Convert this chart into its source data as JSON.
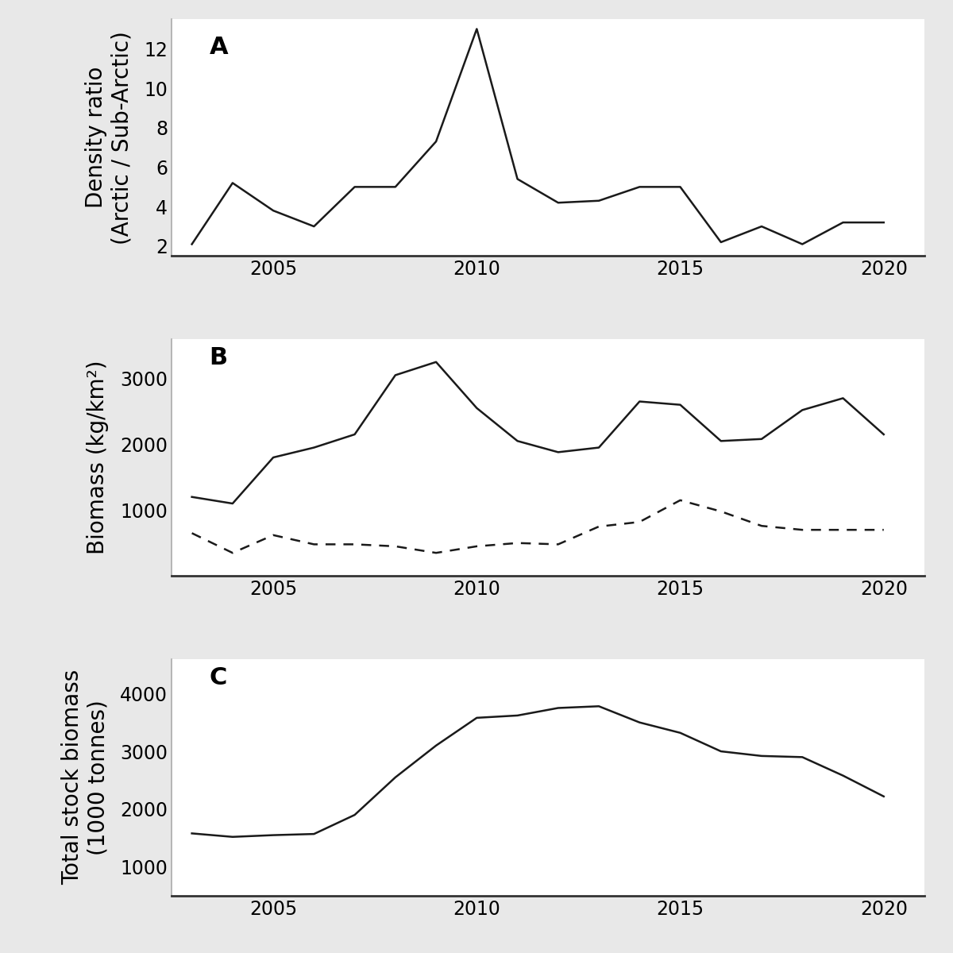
{
  "panel_A": {
    "label": "A",
    "ylabel": "Density ratio\n(Arctic / Sub-Arctic)",
    "years": [
      2003,
      2004,
      2005,
      2006,
      2007,
      2008,
      2009,
      2010,
      2011,
      2012,
      2013,
      2014,
      2015,
      2016,
      2017,
      2018,
      2019,
      2020
    ],
    "values": [
      2.1,
      5.2,
      3.8,
      3.0,
      5.0,
      5.0,
      7.3,
      13.0,
      5.4,
      4.2,
      4.3,
      5.0,
      5.0,
      2.2,
      3.0,
      2.1,
      3.2,
      3.2
    ],
    "yticks": [
      2,
      4,
      6,
      8,
      10,
      12
    ],
    "ylim": [
      1.5,
      13.5
    ]
  },
  "panel_B": {
    "label": "B",
    "ylabel": "Biomass (kg/km²)",
    "years": [
      2003,
      2004,
      2005,
      2006,
      2007,
      2008,
      2009,
      2010,
      2011,
      2012,
      2013,
      2014,
      2015,
      2016,
      2017,
      2018,
      2019,
      2020
    ],
    "arctic": [
      1200,
      1100,
      1800,
      1950,
      2150,
      3050,
      3250,
      2550,
      2050,
      1880,
      1950,
      2650,
      2600,
      2050,
      2080,
      2520,
      2700,
      2150
    ],
    "subarctic": [
      650,
      350,
      620,
      480,
      480,
      450,
      350,
      450,
      500,
      480,
      750,
      820,
      1150,
      980,
      760,
      700,
      700,
      700
    ],
    "yticks": [
      1000,
      2000,
      3000
    ],
    "ylim": [
      0,
      3600
    ]
  },
  "panel_C": {
    "label": "C",
    "ylabel": "Total stock biomass\n(1000 tonnes)",
    "years": [
      2003,
      2004,
      2005,
      2006,
      2007,
      2008,
      2009,
      2010,
      2011,
      2012,
      2013,
      2014,
      2015,
      2016,
      2017,
      2018,
      2019,
      2020
    ],
    "values": [
      1580,
      1520,
      1550,
      1570,
      1900,
      2550,
      3100,
      3580,
      3620,
      3750,
      3780,
      3500,
      3320,
      3000,
      2920,
      2900,
      2580,
      2220
    ],
    "yticks": [
      1000,
      2000,
      3000,
      4000
    ],
    "ylim": [
      500,
      4600
    ]
  },
  "xlim": [
    2002.5,
    2021.0
  ],
  "xticks": [
    2005,
    2010,
    2015,
    2020
  ],
  "line_color": "#1a1a1a",
  "line_width": 1.8,
  "label_fontsize": 20,
  "tick_fontsize": 17,
  "panel_label_fontsize": 22,
  "figure_facecolor": "#e8e8e8",
  "plot_facecolor": "#ffffff",
  "spine_gray": "#aaaaaa",
  "spine_bottom": "#333333"
}
